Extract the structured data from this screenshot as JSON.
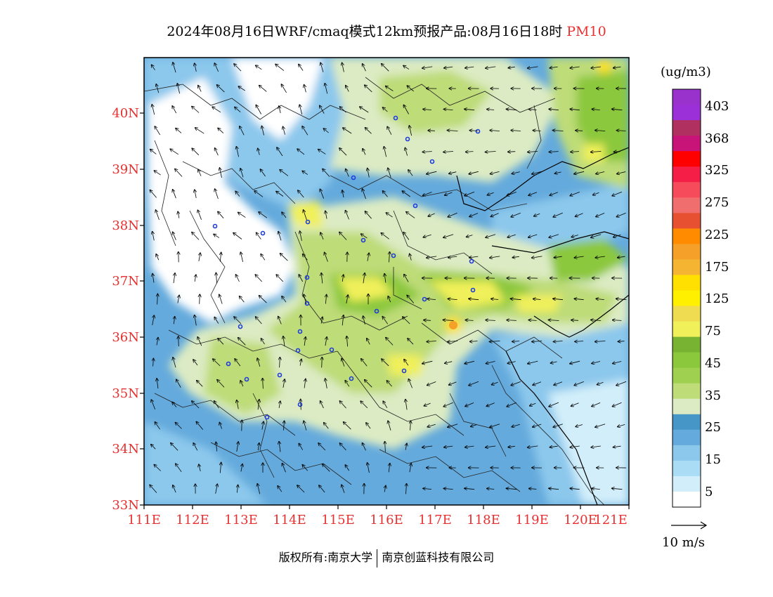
{
  "title": {
    "text": "2024年08月16日WRF/cmaq模式12km预报产品:08月16日18时",
    "pollutant": "PM10"
  },
  "axes": {
    "lat_labels": [
      "40N",
      "39N",
      "38N",
      "37N",
      "36N",
      "35N",
      "34N",
      "33N"
    ],
    "lon_labels": [
      "111E",
      "112E",
      "113E",
      "114E",
      "115E",
      "116E",
      "117E",
      "118E",
      "119E",
      "120E",
      "121E"
    ],
    "label_color": "#e83030"
  },
  "colorbar": {
    "unit": "(ug/m3)",
    "labels": [
      "403",
      "368",
      "325",
      "275",
      "225",
      "175",
      "125",
      "75",
      "45",
      "35",
      "25",
      "15",
      "5"
    ],
    "colors": [
      "#9932cc",
      "#9b30d8",
      "#b03060",
      "#c81478",
      "#ff0000",
      "#f51e46",
      "#f54b5a",
      "#f06e6e",
      "#e85032",
      "#ff8c00",
      "#f5a028",
      "#f5b432",
      "#ffe000",
      "#fff000",
      "#f0dc50",
      "#f0f05a",
      "#78b432",
      "#8cc83c",
      "#a0d050",
      "#bedc78",
      "#dcebc3",
      "#4696c8",
      "#64aadc",
      "#8cc8ec",
      "#aadcf5",
      "#d2eefa",
      "#ffffff"
    ]
  },
  "wind_reference": {
    "label": "10 m/s"
  },
  "footer": {
    "left": "版权所有:南京大学",
    "right": "南京创蓝科技有限公司"
  }
}
